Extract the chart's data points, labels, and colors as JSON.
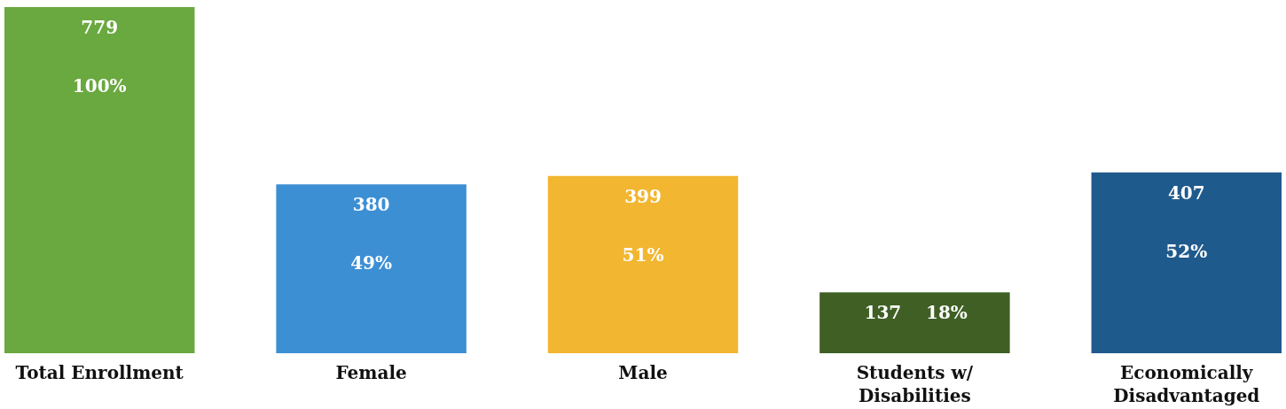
{
  "chart_data": {
    "type": "bar",
    "categories": [
      "Total Enrollment",
      "Female",
      "Male",
      "Students w/ Disabilities",
      "Economically Disadvantaged"
    ],
    "values": [
      779,
      380,
      399,
      137,
      407
    ],
    "colors": [
      "#6aa840",
      "#3d8fd4",
      "#f2b631",
      "#3f5f24",
      "#1f5a8c"
    ],
    "data_labels": true,
    "annotations": [
      "100%",
      "49%",
      "51%",
      "18%",
      "52%"
    ],
    "grid": false
  }
}
